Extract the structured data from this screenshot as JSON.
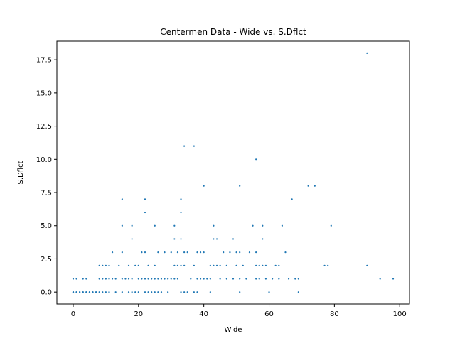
{
  "chart_data": {
    "type": "scatter",
    "title": "Centermen Data - Wide vs. S.Dflct",
    "xlabel": "Wide",
    "ylabel": "S.Dflct",
    "xlim": [
      -5,
      103
    ],
    "ylim": [
      -0.9,
      18.9
    ],
    "xticks": [
      0,
      20,
      40,
      60,
      80,
      100
    ],
    "yticks": [
      0.0,
      2.5,
      5.0,
      7.5,
      10.0,
      12.5,
      15.0,
      17.5
    ],
    "ytick_labels": [
      "0.0",
      "2.5",
      "5.0",
      "7.5",
      "10.0",
      "12.5",
      "15.0",
      "17.5"
    ],
    "marker_color": "#1f77b4",
    "grid": false,
    "points": [
      [
        0,
        0
      ],
      [
        0,
        0
      ],
      [
        0,
        0
      ],
      [
        0,
        0
      ],
      [
        0,
        1
      ],
      [
        1,
        0
      ],
      [
        1,
        0
      ],
      [
        1,
        1
      ],
      [
        2,
        0
      ],
      [
        2,
        0
      ],
      [
        3,
        0
      ],
      [
        3,
        0
      ],
      [
        3,
        1
      ],
      [
        4,
        0
      ],
      [
        4,
        0
      ],
      [
        4,
        1
      ],
      [
        5,
        0
      ],
      [
        5,
        0
      ],
      [
        6,
        0
      ],
      [
        6,
        0
      ],
      [
        7,
        0
      ],
      [
        7,
        0
      ],
      [
        8,
        0
      ],
      [
        8,
        1
      ],
      [
        8,
        2
      ],
      [
        9,
        0
      ],
      [
        9,
        1
      ],
      [
        9,
        2
      ],
      [
        10,
        0
      ],
      [
        10,
        1
      ],
      [
        10,
        2
      ],
      [
        11,
        0
      ],
      [
        11,
        1
      ],
      [
        11,
        2
      ],
      [
        12,
        1
      ],
      [
        12,
        3
      ],
      [
        13,
        0
      ],
      [
        13,
        1
      ],
      [
        14,
        2
      ],
      [
        15,
        0
      ],
      [
        15,
        1
      ],
      [
        15,
        3
      ],
      [
        15,
        5
      ],
      [
        15,
        7
      ],
      [
        16,
        1
      ],
      [
        17,
        0
      ],
      [
        17,
        1
      ],
      [
        17,
        2
      ],
      [
        18,
        0
      ],
      [
        18,
        1
      ],
      [
        18,
        4
      ],
      [
        18,
        5
      ],
      [
        19,
        0
      ],
      [
        19,
        2
      ],
      [
        20,
        0
      ],
      [
        20,
        1
      ],
      [
        20,
        2
      ],
      [
        21,
        1
      ],
      [
        21,
        3
      ],
      [
        22,
        0
      ],
      [
        22,
        1
      ],
      [
        22,
        3
      ],
      [
        22,
        6
      ],
      [
        22,
        7
      ],
      [
        23,
        0
      ],
      [
        23,
        1
      ],
      [
        23,
        2
      ],
      [
        24,
        0
      ],
      [
        24,
        1
      ],
      [
        25,
        0
      ],
      [
        25,
        1
      ],
      [
        25,
        2
      ],
      [
        25,
        5
      ],
      [
        26,
        0
      ],
      [
        26,
        1
      ],
      [
        26,
        3
      ],
      [
        27,
        0
      ],
      [
        27,
        1
      ],
      [
        28,
        1
      ],
      [
        28,
        3
      ],
      [
        29,
        0
      ],
      [
        29,
        1
      ],
      [
        30,
        1
      ],
      [
        30,
        3
      ],
      [
        31,
        1
      ],
      [
        31,
        2
      ],
      [
        31,
        4
      ],
      [
        31,
        5
      ],
      [
        32,
        1
      ],
      [
        32,
        2
      ],
      [
        32,
        3
      ],
      [
        33,
        0
      ],
      [
        33,
        2
      ],
      [
        33,
        4
      ],
      [
        33,
        6
      ],
      [
        33,
        7
      ],
      [
        34,
        0
      ],
      [
        34,
        2
      ],
      [
        34,
        3
      ],
      [
        34,
        11
      ],
      [
        35,
        0
      ],
      [
        35,
        3
      ],
      [
        36,
        1
      ],
      [
        37,
        0
      ],
      [
        37,
        2
      ],
      [
        37,
        11
      ],
      [
        38,
        0
      ],
      [
        38,
        1
      ],
      [
        38,
        3
      ],
      [
        39,
        1
      ],
      [
        39,
        3
      ],
      [
        40,
        1
      ],
      [
        40,
        3
      ],
      [
        40,
        8
      ],
      [
        41,
        1
      ],
      [
        42,
        0
      ],
      [
        42,
        1
      ],
      [
        42,
        2
      ],
      [
        43,
        2
      ],
      [
        43,
        4
      ],
      [
        43,
        5
      ],
      [
        44,
        2
      ],
      [
        44,
        4
      ],
      [
        45,
        1
      ],
      [
        45,
        2
      ],
      [
        46,
        3
      ],
      [
        47,
        1
      ],
      [
        47,
        2
      ],
      [
        48,
        3
      ],
      [
        49,
        1
      ],
      [
        49,
        4
      ],
      [
        50,
        2
      ],
      [
        50,
        3
      ],
      [
        51,
        0
      ],
      [
        51,
        1
      ],
      [
        51,
        3
      ],
      [
        51,
        8
      ],
      [
        52,
        2
      ],
      [
        53,
        1
      ],
      [
        54,
        3
      ],
      [
        55,
        5
      ],
      [
        56,
        1
      ],
      [
        56,
        2
      ],
      [
        56,
        3
      ],
      [
        56,
        10
      ],
      [
        57,
        2
      ],
      [
        57,
        1
      ],
      [
        58,
        4
      ],
      [
        58,
        5
      ],
      [
        58,
        2
      ],
      [
        59,
        1
      ],
      [
        59,
        2
      ],
      [
        60,
        0
      ],
      [
        61,
        1
      ],
      [
        62,
        2
      ],
      [
        63,
        1
      ],
      [
        63,
        2
      ],
      [
        64,
        5
      ],
      [
        65,
        3
      ],
      [
        66,
        1
      ],
      [
        67,
        7
      ],
      [
        68,
        1
      ],
      [
        69,
        0
      ],
      [
        69,
        1
      ],
      [
        72,
        8
      ],
      [
        74,
        8
      ],
      [
        77,
        2
      ],
      [
        78,
        2
      ],
      [
        79,
        5
      ],
      [
        90,
        2
      ],
      [
        90,
        18
      ],
      [
        94,
        1
      ],
      [
        98,
        1
      ]
    ]
  }
}
